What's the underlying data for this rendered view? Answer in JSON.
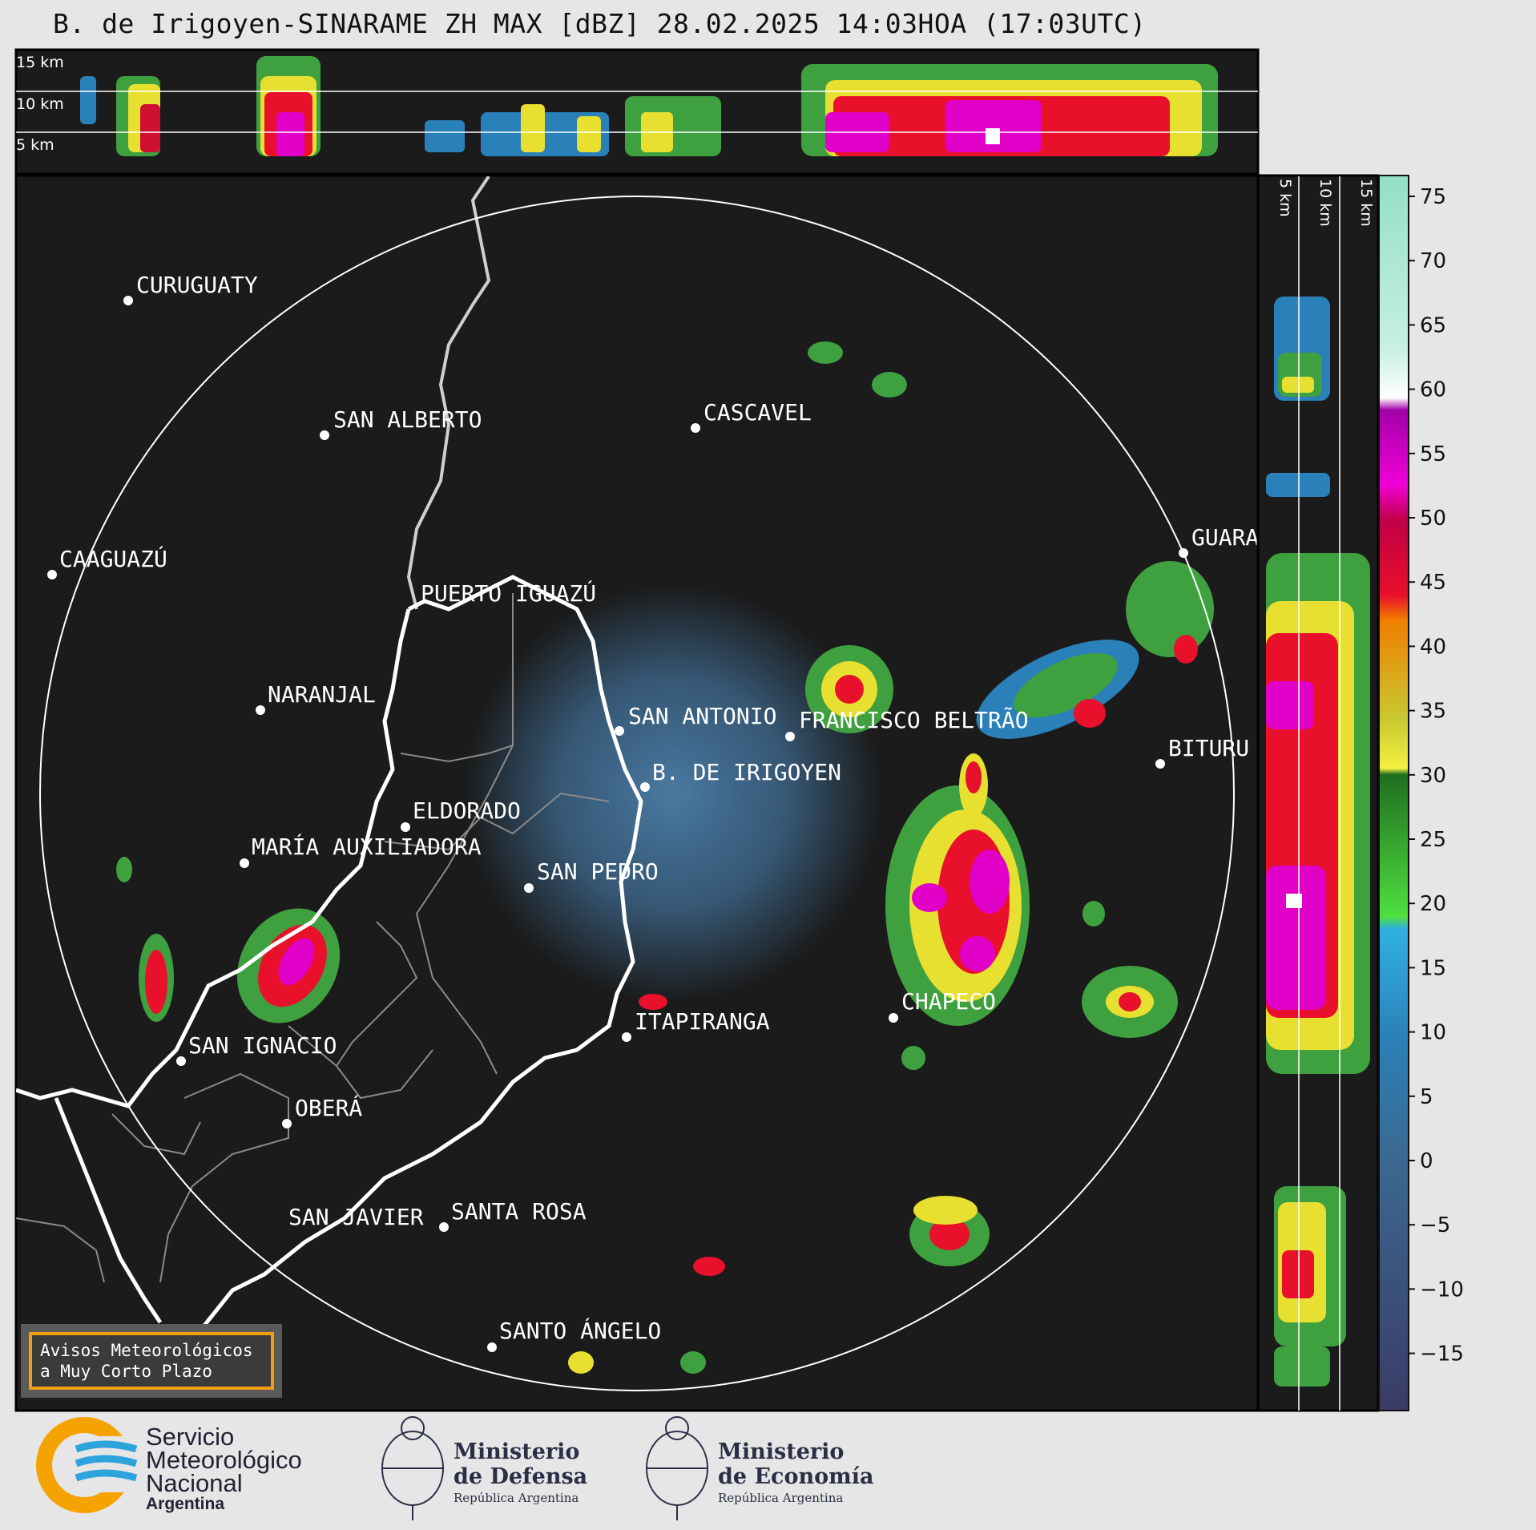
{
  "title": "B. de Irigoyen-SINARAME ZH MAX [dBZ] 28.02.2025 14:03HOA (17:03UTC)",
  "altitude_labels_top": [
    "15 km",
    "10 km",
    "5 km"
  ],
  "altitude_labels_side": [
    "5 km",
    "10 km",
    "15 km"
  ],
  "colorbar": {
    "ticks": [
      "75",
      "70",
      "65",
      "60",
      "55",
      "50",
      "45",
      "40",
      "35",
      "30",
      "25",
      "20",
      "15",
      "10",
      "5",
      "0",
      "−5",
      "−10",
      "−15"
    ]
  },
  "cities": {
    "curuguaty": "CURUGUATY",
    "san_alberto": "SAN ALBERTO",
    "cascavel": "CASCAVEL",
    "caaguazu": "CAAGUAZÚ",
    "guarapuava": "GUARA",
    "puerto_iguazu": "PUERTO IGUAZÚ",
    "naranjal": "NARANJAL",
    "san_antonio": "SAN ANTONIO",
    "francisco_beltrao": "FRANCISCO BELTRÃO",
    "bituruna": "BITURU",
    "b_de_irigoyen": "B. DE IRIGOYEN",
    "eldorado": "ELDORADO",
    "maria_auxiliadora": "MARÍA AUXILIADORA",
    "san_pedro": "SAN PEDRO",
    "chapeco": "CHAPECO",
    "itapiranga": "ITAPIRANGA",
    "san_ignacio": "SAN IGNACIO",
    "obera": "OBERÁ",
    "san_javier": "SAN JAVIER",
    "santa_rosa": "SANTA ROSA",
    "santo_angelo": "SANTO ÁNGELO"
  },
  "avisos": {
    "line1": "Avisos Meteorológicos",
    "line2": "a Muy Corto Plazo"
  },
  "logos": {
    "smn": {
      "line1": "Servicio",
      "line2": "Meteorológico",
      "line3": "Nacional",
      "line4": "Argentina"
    },
    "defensa": {
      "line1": "Ministerio",
      "line2": "de Defensa",
      "line3": "República Argentina"
    },
    "economia": {
      "line1": "Ministerio",
      "line2": "de Economía",
      "line3": "República Argentina"
    }
  },
  "colors": {
    "background": "#e6e6e6",
    "panel": "#1b1b1b",
    "ring": "#ffffff",
    "border": "#ffffff",
    "province_border": "#8a8a8a",
    "avisos_border": "#f29d12",
    "smn_orange": "#f5a300",
    "smn_blue": "#2ea4dc"
  },
  "map_icons": {
    "city_marker": "city-dot-icon",
    "smn_logo": "smn-logo-icon",
    "coat_of_arms": "coat-of-arms-icon"
  }
}
